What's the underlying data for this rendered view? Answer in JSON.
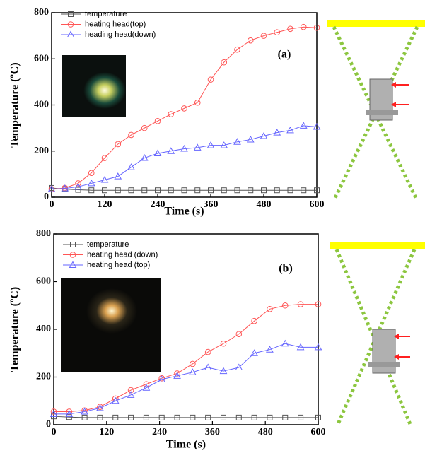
{
  "chart_data": [
    {
      "type": "line",
      "annotation": "(a)",
      "xlabel": "Time (s)",
      "ylabel": "Temperature (ºC)",
      "x": [
        0,
        30,
        60,
        90,
        120,
        150,
        180,
        210,
        240,
        270,
        300,
        330,
        360,
        390,
        420,
        450,
        480,
        510,
        540,
        570,
        600
      ],
      "xlim": [
        0,
        600
      ],
      "xticks": [
        0,
        120,
        240,
        360,
        480,
        600
      ],
      "ylim": [
        0,
        800
      ],
      "yticks": [
        0,
        200,
        400,
        600,
        800
      ],
      "legend": "upper left",
      "series": [
        {
          "name": "temperature",
          "color": "#555555",
          "marker": "square",
          "values": [
            40,
            35,
            32,
            30,
            30,
            30,
            30,
            30,
            30,
            30,
            30,
            30,
            30,
            30,
            30,
            30,
            30,
            30,
            30,
            30,
            30
          ]
        },
        {
          "name": "heating head(top)",
          "color": "#ff5555",
          "marker": "circle",
          "values": [
            35,
            40,
            60,
            105,
            170,
            230,
            270,
            300,
            330,
            360,
            385,
            410,
            510,
            585,
            640,
            680,
            700,
            715,
            730,
            738,
            735
          ]
        },
        {
          "name": "heading head(down)",
          "color": "#6666ff",
          "marker": "triangle",
          "values": [
            35,
            38,
            45,
            60,
            75,
            90,
            130,
            170,
            190,
            200,
            210,
            215,
            225,
            225,
            240,
            250,
            265,
            280,
            290,
            310,
            305
          ]
        }
      ]
    },
    {
      "type": "line",
      "annotation": "(b)",
      "xlabel": "Time (s)",
      "ylabel": "Temperature (ºC)",
      "x": [
        0,
        35,
        70,
        105,
        140,
        175,
        210,
        245,
        280,
        315,
        350,
        385,
        420,
        455,
        490,
        525,
        560,
        600
      ],
      "xlim": [
        0,
        600
      ],
      "xticks": [
        0,
        120,
        240,
        360,
        480,
        600
      ],
      "ylim": [
        0,
        800
      ],
      "yticks": [
        0,
        200,
        400,
        600,
        800
      ],
      "legend": "upper left",
      "series": [
        {
          "name": "temperature",
          "color": "#555555",
          "marker": "square",
          "values": [
            35,
            32,
            30,
            30,
            30,
            30,
            30,
            30,
            30,
            30,
            30,
            30,
            30,
            30,
            30,
            30,
            30,
            30
          ]
        },
        {
          "name": "heating head (down)",
          "color": "#ff5555",
          "marker": "circle",
          "values": [
            55,
            55,
            60,
            75,
            110,
            145,
            170,
            195,
            215,
            255,
            305,
            340,
            380,
            435,
            485,
            500,
            505,
            505
          ]
        },
        {
          "name": "heating head (top)",
          "color": "#6666ff",
          "marker": "triangle",
          "values": [
            45,
            45,
            55,
            70,
            100,
            125,
            155,
            190,
            205,
            220,
            240,
            225,
            240,
            300,
            315,
            340,
            325,
            325
          ]
        }
      ]
    }
  ]
}
